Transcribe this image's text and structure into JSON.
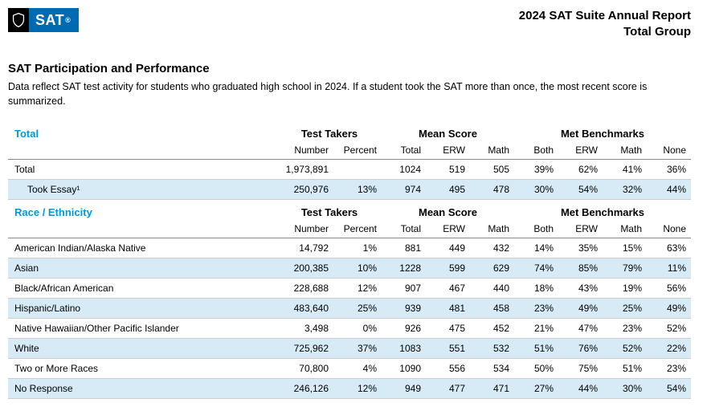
{
  "header": {
    "logo_text": "SAT",
    "report_title_l1": "2024 SAT Suite Annual Report",
    "report_title_l2": "Total Group"
  },
  "section": {
    "title": "SAT Participation and Performance",
    "description": "Data reflect SAT test activity for students who graduated high school in 2024. If a student took the SAT more than once, the most recent score is summarized."
  },
  "column_groups": {
    "test_takers": "Test Takers",
    "mean_score": "Mean Score",
    "met_benchmarks": "Met Benchmarks"
  },
  "sub_columns": {
    "number": "Number",
    "percent": "Percent",
    "total": "Total",
    "erw": "ERW",
    "math": "Math",
    "both": "Both",
    "none": "None"
  },
  "groups": [
    {
      "heading": "Total",
      "rows": [
        {
          "label": "Total",
          "indent": false,
          "number": "1,973,891",
          "percent": "",
          "total": "1024",
          "erw": "519",
          "math": "505",
          "both": "39%",
          "b_erw": "62%",
          "b_math": "41%",
          "none": "36%"
        },
        {
          "label": "Took Essay¹",
          "indent": true,
          "number": "250,976",
          "percent": "13%",
          "total": "974",
          "erw": "495",
          "math": "478",
          "both": "30%",
          "b_erw": "54%",
          "b_math": "32%",
          "none": "44%"
        }
      ]
    },
    {
      "heading": "Race / Ethnicity",
      "rows": [
        {
          "label": "American Indian/Alaska Native",
          "indent": false,
          "number": "14,792",
          "percent": "1%",
          "total": "881",
          "erw": "449",
          "math": "432",
          "both": "14%",
          "b_erw": "35%",
          "b_math": "15%",
          "none": "63%"
        },
        {
          "label": "Asian",
          "indent": false,
          "number": "200,385",
          "percent": "10%",
          "total": "1228",
          "erw": "599",
          "math": "629",
          "both": "74%",
          "b_erw": "85%",
          "b_math": "79%",
          "none": "11%"
        },
        {
          "label": "Black/African American",
          "indent": false,
          "number": "228,688",
          "percent": "12%",
          "total": "907",
          "erw": "467",
          "math": "440",
          "both": "18%",
          "b_erw": "43%",
          "b_math": "19%",
          "none": "56%"
        },
        {
          "label": "Hispanic/Latino",
          "indent": false,
          "number": "483,640",
          "percent": "25%",
          "total": "939",
          "erw": "481",
          "math": "458",
          "both": "23%",
          "b_erw": "49%",
          "b_math": "25%",
          "none": "49%"
        },
        {
          "label": "Native Hawaiian/Other Pacific Islander",
          "indent": false,
          "number": "3,498",
          "percent": "0%",
          "total": "926",
          "erw": "475",
          "math": "452",
          "both": "21%",
          "b_erw": "47%",
          "b_math": "23%",
          "none": "52%"
        },
        {
          "label": "White",
          "indent": false,
          "number": "725,962",
          "percent": "37%",
          "total": "1083",
          "erw": "551",
          "math": "532",
          "both": "51%",
          "b_erw": "76%",
          "b_math": "52%",
          "none": "22%"
        },
        {
          "label": "Two or More Races",
          "indent": false,
          "number": "70,800",
          "percent": "4%",
          "total": "1090",
          "erw": "556",
          "math": "534",
          "both": "50%",
          "b_erw": "75%",
          "b_math": "51%",
          "none": "23%"
        },
        {
          "label": "No Response",
          "indent": false,
          "number": "246,126",
          "percent": "12%",
          "total": "949",
          "erw": "477",
          "math": "471",
          "both": "27%",
          "b_erw": "44%",
          "b_math": "30%",
          "none": "54%"
        }
      ]
    }
  ],
  "colors": {
    "brand_blue": "#006ab0",
    "heading_blue": "#0099d6",
    "stripe": "#d6ebf5",
    "rule": "#888888"
  }
}
